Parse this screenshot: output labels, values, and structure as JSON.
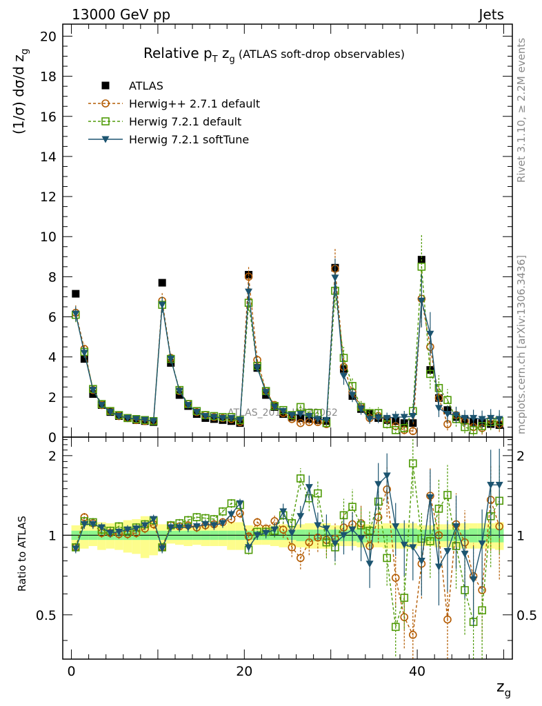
{
  "header": {
    "left": "13000 GeV pp",
    "right": "Jets"
  },
  "side_text": {
    "rivet": "Rivet 3.1.10, ≥ 2.2M events",
    "mcplots": "mcplots.cern.ch [arXiv:1306.3436]"
  },
  "chart_data": [
    {
      "type": "scatter",
      "panel": "main",
      "title": "Relative pT zg (ATLAS soft-drop observables)",
      "title_parts": {
        "main": "Relative p",
        "sub": "T",
        "mid": " z",
        "sub2": "g",
        "rest": " (ATLAS soft-drop observables)"
      },
      "ylabel": "(1/σ) dσ/d z",
      "ylabel_sub": "g",
      "xlabel": "z",
      "xlabel_sub": "g",
      "xlim": [
        -1,
        51
      ],
      "ylim": [
        0,
        20.6
      ],
      "yticks": [
        0,
        2,
        4,
        6,
        8,
        10,
        12,
        14,
        16,
        18,
        20
      ],
      "xticks": [
        0,
        20,
        40
      ],
      "watermark": "ATLAS_2019_I1772062",
      "legend_position": "top-left",
      "series": [
        {
          "name": "ATLAS",
          "color": "#000000",
          "marker": "square-filled",
          "x": [
            0.5,
            1.5,
            2.5,
            3.5,
            4.5,
            5.5,
            6.5,
            7.5,
            8.5,
            9.5,
            10.5,
            11.5,
            12.5,
            13.5,
            14.5,
            15.5,
            16.5,
            17.5,
            18.5,
            19.5,
            20.5,
            21.5,
            22.5,
            23.5,
            24.5,
            25.5,
            26.5,
            27.5,
            28.5,
            29.5,
            30.5,
            31.5,
            32.5,
            33.5,
            34.5,
            35.5,
            36.5,
            37.5,
            38.5,
            39.5,
            40.5,
            41.5,
            42.5,
            43.5,
            44.5,
            45.5,
            46.5,
            47.5,
            48.5,
            49.5
          ],
          "y": [
            7.15,
            3.9,
            2.15,
            1.6,
            1.25,
            1.05,
            0.95,
            0.85,
            0.8,
            0.75,
            7.7,
            3.7,
            2.1,
            1.55,
            1.15,
            0.95,
            0.9,
            0.85,
            0.8,
            0.7,
            8.1,
            3.45,
            2.1,
            1.5,
            1.15,
            1.0,
            0.95,
            0.9,
            0.85,
            0.8,
            8.45,
            3.4,
            2.05,
            1.4,
            1.15,
            0.95,
            0.85,
            0.8,
            0.7,
            0.7,
            8.85,
            3.35,
            1.95,
            1.35,
            1.0,
            0.85,
            0.75,
            0.7,
            0.65,
            0.6
          ]
        },
        {
          "name": "Herwig++ 2.7.1 default",
          "color": "#b35a00",
          "marker": "circle-open",
          "dashed": true,
          "x": [
            0.5,
            1.5,
            2.5,
            3.5,
            4.5,
            5.5,
            6.5,
            7.5,
            8.5,
            9.5,
            10.5,
            11.5,
            12.5,
            13.5,
            14.5,
            15.5,
            16.5,
            17.5,
            18.5,
            19.5,
            20.5,
            21.5,
            22.5,
            23.5,
            24.5,
            25.5,
            26.5,
            27.5,
            28.5,
            29.5,
            30.5,
            31.5,
            32.5,
            33.5,
            34.5,
            35.5,
            36.5,
            37.5,
            38.5,
            39.5,
            40.5,
            41.5,
            42.5,
            43.5,
            44.5,
            45.5,
            46.5,
            47.5,
            48.5,
            49.5
          ],
          "y": [
            6.2,
            4.4,
            2.35,
            1.6,
            1.3,
            1.05,
            0.95,
            0.85,
            0.8,
            0.8,
            6.8,
            3.95,
            2.3,
            1.65,
            1.25,
            1.1,
            1.0,
            0.95,
            0.9,
            0.75,
            8.0,
            3.85,
            2.3,
            1.6,
            1.2,
            0.9,
            0.7,
            0.75,
            0.75,
            0.65,
            8.4,
            3.5,
            2.25,
            1.5,
            0.95,
            1.05,
            0.9,
            0.55,
            0.35,
            0.3,
            6.9,
            4.5,
            1.95,
            0.65,
            1.1,
            0.8,
            0.5,
            0.45,
            0.85,
            0.65
          ]
        },
        {
          "name": "Herwig 7.2.1 default",
          "color": "#4e9a06",
          "marker": "square-open",
          "dashed": true,
          "x": [
            0.5,
            1.5,
            2.5,
            3.5,
            4.5,
            5.5,
            6.5,
            7.5,
            8.5,
            9.5,
            10.5,
            11.5,
            12.5,
            13.5,
            14.5,
            15.5,
            16.5,
            17.5,
            18.5,
            19.5,
            20.5,
            21.5,
            22.5,
            23.5,
            24.5,
            25.5,
            26.5,
            27.5,
            28.5,
            29.5,
            30.5,
            31.5,
            32.5,
            33.5,
            34.5,
            35.5,
            36.5,
            37.5,
            38.5,
            39.5,
            40.5,
            41.5,
            42.5,
            43.5,
            44.5,
            45.5,
            46.5,
            47.5,
            48.5,
            49.5
          ],
          "y": [
            6.1,
            4.25,
            2.4,
            1.65,
            1.3,
            1.1,
            0.95,
            0.9,
            0.85,
            0.8,
            6.6,
            3.9,
            2.35,
            1.65,
            1.3,
            1.1,
            1.05,
            1.0,
            1.0,
            0.85,
            6.7,
            3.55,
            2.3,
            1.55,
            1.35,
            1.1,
            1.5,
            1.2,
            1.2,
            0.7,
            7.3,
            3.95,
            2.55,
            1.5,
            1.2,
            1.2,
            0.65,
            0.35,
            0.45,
            1.3,
            8.5,
            3.15,
            2.45,
            1.85,
            0.9,
            0.5,
            0.35,
            0.55,
            0.75,
            0.8
          ]
        },
        {
          "name": "Herwig 7.2.1 softTune",
          "color": "#1c5470",
          "marker": "triangle-down-filled",
          "dashed": false,
          "x": [
            0.5,
            1.5,
            2.5,
            3.5,
            4.5,
            5.5,
            6.5,
            7.5,
            8.5,
            9.5,
            10.5,
            11.5,
            12.5,
            13.5,
            14.5,
            15.5,
            16.5,
            17.5,
            18.5,
            19.5,
            20.5,
            21.5,
            22.5,
            23.5,
            24.5,
            25.5,
            26.5,
            27.5,
            28.5,
            29.5,
            30.5,
            31.5,
            32.5,
            33.5,
            34.5,
            35.5,
            36.5,
            37.5,
            38.5,
            39.5,
            40.5,
            41.5,
            42.5,
            43.5,
            44.5,
            45.5,
            46.5,
            47.5,
            48.5,
            49.5
          ],
          "y": [
            6.15,
            4.2,
            2.35,
            1.6,
            1.25,
            1.05,
            0.95,
            0.9,
            0.85,
            0.8,
            6.6,
            3.9,
            2.3,
            1.6,
            1.25,
            1.05,
            1.0,
            0.95,
            0.95,
            0.85,
            7.25,
            3.45,
            2.25,
            1.5,
            1.3,
            1.1,
            1.15,
            1.05,
            0.9,
            0.85,
            7.95,
            3.05,
            2.1,
            1.4,
            0.9,
            0.95,
            0.95,
            1.0,
            1.0,
            1.05,
            6.8,
            5.15,
            1.45,
            1.15,
            1.1,
            0.95,
            0.95,
            0.9,
            0.95,
            0.9
          ]
        }
      ]
    },
    {
      "type": "scatter",
      "panel": "ratio",
      "ylabel": "Ratio to ATLAS",
      "yscale": "log",
      "ylim": [
        0.34,
        2.35
      ],
      "yticks": [
        0.5,
        1,
        2
      ],
      "ytick_labels": [
        "0.5",
        "1",
        "2"
      ],
      "band_colors": {
        "inner": "#8df58d",
        "outer": "#fdfd8c"
      },
      "band_inner_halfwidth": [
        0.04,
        0.04,
        0.04,
        0.04,
        0.04,
        0.04,
        0.04,
        0.04,
        0.04,
        0.04,
        0.04,
        0.04,
        0.04,
        0.04,
        0.04,
        0.04,
        0.04,
        0.04,
        0.04,
        0.04,
        0.04,
        0.04,
        0.04,
        0.04,
        0.04,
        0.04,
        0.05,
        0.05,
        0.05,
        0.05,
        0.05,
        0.05,
        0.05,
        0.06,
        0.06,
        0.06,
        0.06,
        0.06,
        0.06,
        0.06,
        0.05,
        0.05,
        0.05,
        0.05,
        0.05,
        0.05,
        0.06,
        0.06,
        0.06,
        0.06
      ],
      "band_outer_halfwidth": [
        0.09,
        0.11,
        0.09,
        0.12,
        0.11,
        0.12,
        0.14,
        0.15,
        0.18,
        0.16,
        0.1,
        0.07,
        0.08,
        0.09,
        0.08,
        0.09,
        0.09,
        0.09,
        0.12,
        0.12,
        0.09,
        0.08,
        0.08,
        0.09,
        0.1,
        0.09,
        0.1,
        0.11,
        0.11,
        0.11,
        0.09,
        0.09,
        0.09,
        0.1,
        0.1,
        0.1,
        0.11,
        0.11,
        0.11,
        0.11,
        0.09,
        0.09,
        0.1,
        0.1,
        0.1,
        0.11,
        0.11,
        0.11,
        0.11,
        0.12
      ],
      "series": [
        {
          "name": "Herwig++ 2.7.1 default",
          "color": "#b35a00",
          "marker": "circle-open",
          "dashed": true,
          "y": [
            0.9,
            1.17,
            1.11,
            1.02,
            1.02,
            1.01,
            1.01,
            1.02,
            1.06,
            1.1,
            0.9,
            1.09,
            1.08,
            1.09,
            1.07,
            1.09,
            1.1,
            1.12,
            1.15,
            1.21,
            0.99,
            1.12,
            1.06,
            1.13,
            1.05,
            0.9,
            0.82,
            0.94,
            0.98,
            0.96,
            0.97,
            1.07,
            1.1,
            1.11,
            0.91,
            1.17,
            1.49,
            0.69,
            0.49,
            0.42,
            0.78,
            1.41,
            1.0,
            0.48,
            1.1,
            0.94,
            0.7,
            0.62,
            1.36,
            1.08
          ]
        },
        {
          "name": "Herwig 7.2.1 default",
          "color": "#4e9a06",
          "marker": "square-open",
          "dashed": true,
          "y": [
            0.9,
            1.13,
            1.12,
            1.05,
            1.04,
            1.08,
            1.04,
            1.07,
            1.1,
            1.14,
            0.9,
            1.09,
            1.11,
            1.14,
            1.17,
            1.16,
            1.15,
            1.23,
            1.32,
            1.3,
            0.88,
            1.03,
            1.03,
            1.04,
            1.19,
            1.11,
            1.64,
            1.38,
            1.44,
            0.94,
            0.9,
            1.19,
            1.28,
            1.09,
            1.04,
            1.34,
            0.82,
            0.45,
            0.58,
            1.87,
            0.97,
            0.95,
            1.26,
            1.42,
            0.91,
            0.62,
            0.47,
            0.52,
            1.18,
            1.35
          ]
        },
        {
          "name": "Herwig 7.2.1 softTune",
          "color": "#1c5470",
          "marker": "triangle-down-filled",
          "dashed": false,
          "y": [
            0.89,
            1.1,
            1.1,
            1.07,
            1.02,
            1.03,
            1.05,
            1.06,
            1.09,
            1.15,
            0.89,
            1.07,
            1.07,
            1.07,
            1.08,
            1.1,
            1.09,
            1.11,
            1.2,
            1.32,
            0.9,
            1.0,
            1.02,
            1.05,
            1.23,
            1.02,
            1.18,
            1.52,
            1.09,
            1.06,
            0.93,
            1.0,
            1.05,
            0.97,
            0.78,
            1.56,
            1.68,
            1.08,
            0.92,
            0.9,
            0.8,
            1.39,
            0.76,
            0.87,
            1.08,
            0.85,
            0.68,
            0.93,
            1.55,
            1.55
          ]
        }
      ]
    }
  ]
}
